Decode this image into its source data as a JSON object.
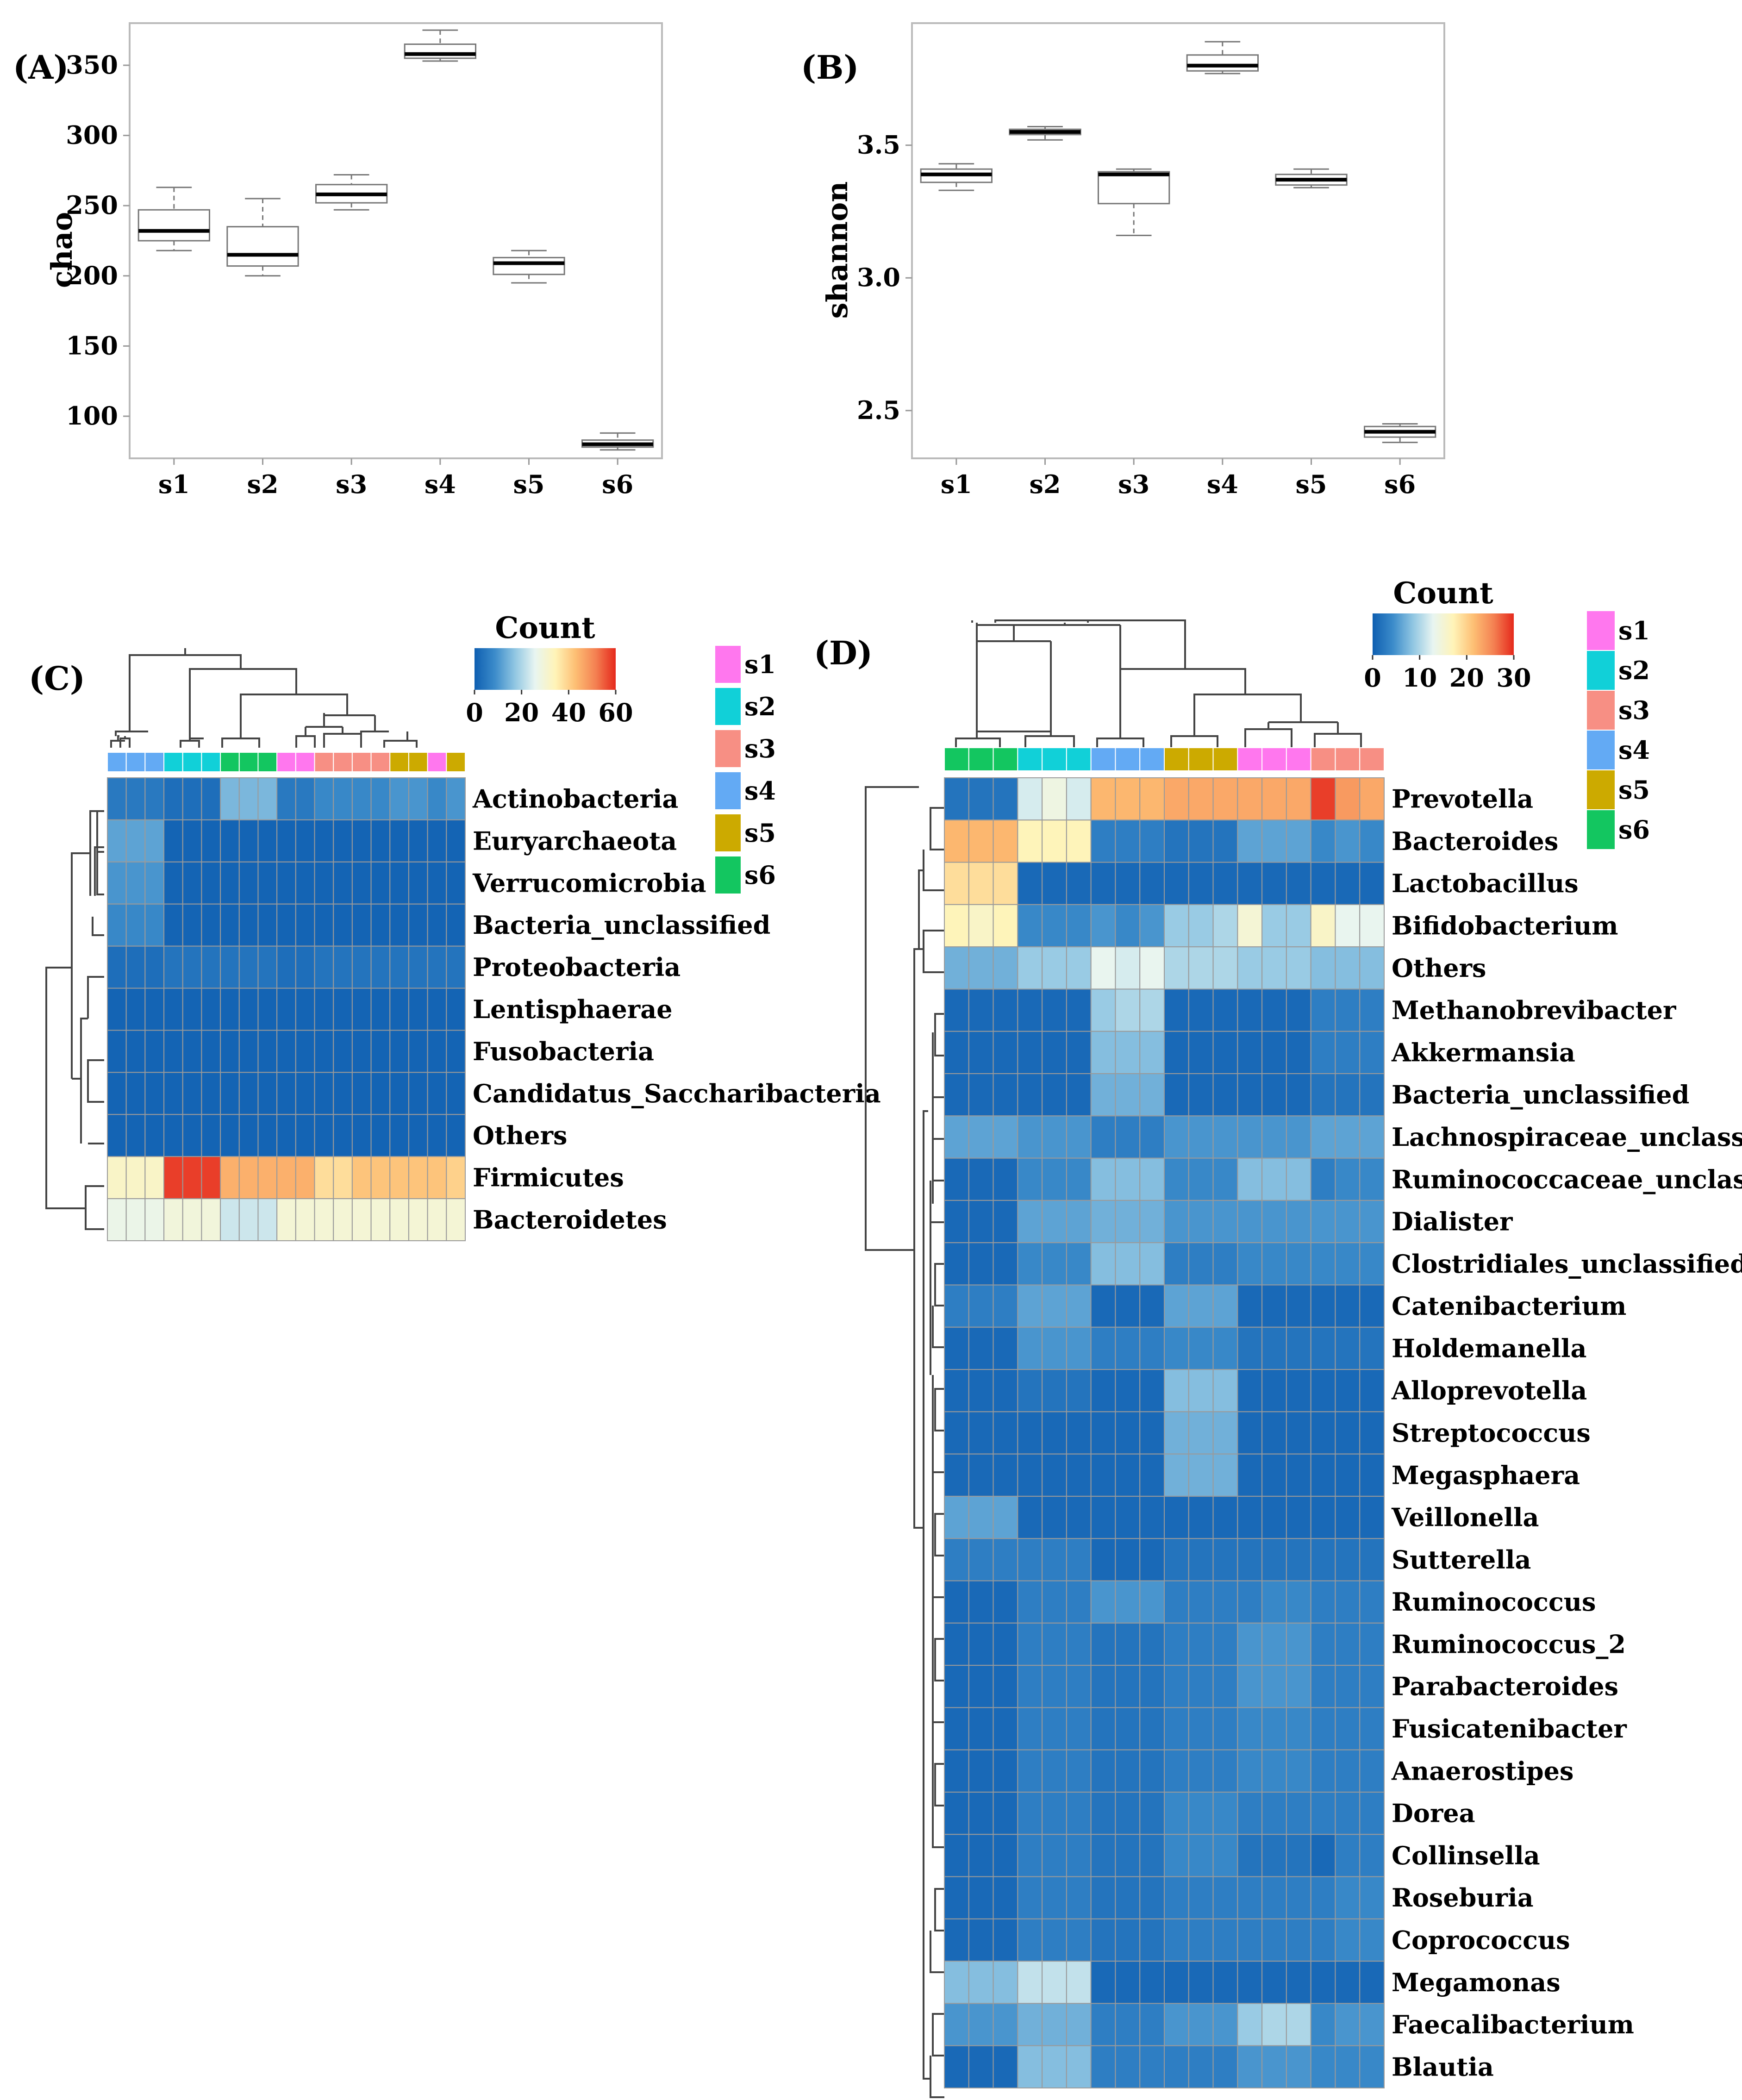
{
  "panels": {
    "A": "(A)",
    "B": "(B)",
    "C": "(C)",
    "D": "(D)"
  },
  "group_colors": {
    "s1": "#ff77ee",
    "s2": "#11d0d8",
    "s3": "#f78f84",
    "s4": "#63aaf4",
    "s5": "#ccaa00",
    "s6": "#13c660"
  },
  "heat_colors": [
    "#0f5fb1",
    "#3b8bca",
    "#90c6e2",
    "#e8f5f1",
    "#fff4b8",
    "#fdbf74",
    "#f48152",
    "#e5291c"
  ],
  "chart_data": [
    {
      "id": "A",
      "type": "box",
      "title": "",
      "xlabel": "",
      "ylabel": "chao",
      "categories": [
        "s1",
        "s2",
        "s3",
        "s4",
        "s5",
        "s6"
      ],
      "yticks": [
        100,
        150,
        200,
        250,
        300,
        350
      ],
      "ylim": [
        70,
        380
      ],
      "boxes": [
        {
          "min": 218,
          "q1": 225,
          "median": 232,
          "q3": 247,
          "max": 263
        },
        {
          "min": 200,
          "q1": 207,
          "median": 215,
          "q3": 235,
          "max": 255
        },
        {
          "min": 247,
          "q1": 252,
          "median": 258,
          "q3": 265,
          "max": 272
        },
        {
          "min": 353,
          "q1": 355,
          "median": 358,
          "q3": 365,
          "max": 375
        },
        {
          "min": 195,
          "q1": 201,
          "median": 209,
          "q3": 213,
          "max": 218
        },
        {
          "min": 76,
          "q1": 78,
          "median": 80,
          "q3": 83,
          "max": 88
        }
      ]
    },
    {
      "id": "B",
      "type": "box",
      "title": "",
      "xlabel": "",
      "ylabel": "shannon",
      "categories": [
        "s1",
        "s2",
        "s3",
        "s4",
        "s5",
        "s6"
      ],
      "yticks": [
        2.5,
        3.0,
        3.5
      ],
      "yticklabels": [
        "2.5",
        "3.0",
        "3.5"
      ],
      "ylim": [
        2.32,
        3.96
      ],
      "boxes": [
        {
          "min": 3.33,
          "q1": 3.36,
          "median": 3.39,
          "q3": 3.41,
          "max": 3.43
        },
        {
          "min": 3.52,
          "q1": 3.54,
          "median": 3.55,
          "q3": 3.56,
          "max": 3.57
        },
        {
          "min": 3.16,
          "q1": 3.28,
          "median": 3.39,
          "q3": 3.4,
          "max": 3.41
        },
        {
          "min": 3.77,
          "q1": 3.78,
          "median": 3.8,
          "q3": 3.84,
          "max": 3.89
        },
        {
          "min": 3.34,
          "q1": 3.35,
          "median": 3.37,
          "q3": 3.39,
          "max": 3.41
        },
        {
          "min": 2.38,
          "q1": 2.4,
          "median": 2.42,
          "q3": 2.44,
          "max": 2.45
        }
      ]
    },
    {
      "id": "C",
      "type": "heatmap",
      "title": "",
      "legend_title": "Count",
      "legend_ticks": [
        "0",
        "20",
        "40",
        "60"
      ],
      "legend_max": 60,
      "legend_groups": [
        "s1",
        "s2",
        "s3",
        "s4",
        "s5",
        "s6"
      ],
      "column_groups": [
        "s4",
        "s4",
        "s4",
        "s2",
        "s2",
        "s2",
        "s6",
        "s6",
        "s6",
        "s1",
        "s1",
        "s3",
        "s3",
        "s3",
        "s3",
        "s5",
        "s5",
        "s1",
        "s5"
      ],
      "rows": [
        "Actinobacteria",
        "Euryarchaeota",
        "Verrucomicrobia",
        "Bacteria_unclassified",
        "Proteobacteria",
        "Lentisphaerae",
        "Fusobacteria",
        "Candidatus_Saccharibacteria",
        "Others",
        "Firmicutes",
        "Bacteroidetes"
      ],
      "values": [
        [
          5,
          5,
          5,
          3,
          3,
          3,
          15,
          15,
          15,
          5,
          5,
          8,
          8,
          8,
          8,
          10,
          10,
          8,
          10
        ],
        [
          12,
          12,
          12,
          1,
          1,
          1,
          1,
          1,
          1,
          1,
          1,
          1,
          1,
          1,
          1,
          1,
          1,
          1,
          1
        ],
        [
          10,
          10,
          10,
          1,
          1,
          1,
          1,
          1,
          1,
          1,
          1,
          1,
          1,
          1,
          1,
          1,
          1,
          1,
          1
        ],
        [
          8,
          8,
          8,
          1,
          1,
          1,
          1,
          1,
          1,
          1,
          1,
          1,
          1,
          1,
          1,
          1,
          1,
          1,
          1
        ],
        [
          3,
          3,
          3,
          4,
          4,
          4,
          4,
          4,
          4,
          3,
          3,
          4,
          4,
          4,
          4,
          4,
          4,
          4,
          4
        ],
        [
          1,
          1,
          1,
          1,
          1,
          1,
          1,
          1,
          1,
          1,
          1,
          1,
          1,
          1,
          1,
          1,
          1,
          1,
          1
        ],
        [
          1,
          1,
          1,
          1,
          1,
          1,
          1,
          1,
          1,
          1,
          1,
          1,
          1,
          1,
          1,
          1,
          1,
          1,
          1
        ],
        [
          1,
          1,
          1,
          1,
          1,
          1,
          1,
          1,
          1,
          1,
          1,
          1,
          1,
          1,
          1,
          1,
          1,
          1,
          1
        ],
        [
          1,
          1,
          1,
          1,
          1,
          1,
          1,
          1,
          1,
          1,
          1,
          1,
          1,
          1,
          1,
          1,
          1,
          1,
          1
        ],
        [
          32,
          32,
          32,
          58,
          58,
          58,
          45,
          45,
          45,
          45,
          45,
          38,
          38,
          42,
          42,
          42,
          42,
          42,
          40
        ],
        [
          27,
          27,
          27,
          29,
          29,
          29,
          23,
          23,
          23,
          30,
          30,
          30,
          30,
          30,
          30,
          30,
          30,
          30,
          30
        ]
      ]
    },
    {
      "id": "D",
      "type": "heatmap",
      "title": "",
      "legend_title": "Count",
      "legend_ticks": [
        "0",
        "10",
        "20",
        "30"
      ],
      "legend_max": 30,
      "legend_groups": [
        "s1",
        "s2",
        "s3",
        "s4",
        "s5",
        "s6"
      ],
      "column_groups": [
        "s6",
        "s6",
        "s6",
        "s2",
        "s2",
        "s2",
        "s4",
        "s4",
        "s4",
        "s5",
        "s5",
        "s5",
        "s1",
        "s1",
        "s1",
        "s3",
        "s3",
        "s3"
      ],
      "rows": [
        "Prevotella",
        "Bacteroides",
        "Lactobacillus",
        "Bifidobacterium",
        "Others",
        "Methanobrevibacter",
        "Akkermansia",
        "Bacteria_unclassified",
        "Lachnospiraceae_unclassified",
        "Ruminococcaceae_unclassified",
        "Dialister",
        "Clostridiales_unclassified",
        "Catenibacterium",
        "Holdemanella",
        "Alloprevotella",
        "Streptococcus",
        "Megasphaera",
        "Veillonella",
        "Sutterella",
        "Ruminococcus",
        "Ruminococcus_2",
        "Parabacteroides",
        "Fusicatenibacter",
        "Anaerostipes",
        "Dorea",
        "Collinsella",
        "Roseburia",
        "Coprococcus",
        "Megamonas",
        "Faecalibacterium",
        "Blautia"
      ],
      "values": [
        [
          2,
          2,
          2,
          12,
          14,
          12,
          22,
          22,
          22,
          23,
          23,
          23,
          23,
          23,
          23,
          29,
          24,
          23
        ],
        [
          22,
          22,
          22,
          17,
          17,
          17,
          3,
          3,
          3,
          2,
          2,
          2,
          6,
          6,
          6,
          4,
          5,
          4
        ],
        [
          19,
          19,
          19,
          1,
          1,
          1,
          1,
          1,
          1,
          1,
          1,
          1,
          1,
          1,
          1,
          1,
          1,
          1
        ],
        [
          17,
          16,
          17,
          4,
          4,
          4,
          5,
          4,
          5,
          9,
          9,
          10,
          15,
          9,
          9,
          16,
          13,
          13
        ],
        [
          7,
          7,
          7,
          9,
          9,
          9,
          13,
          12,
          13,
          10,
          10,
          10,
          9,
          9,
          9,
          8,
          8,
          8
        ],
        [
          1,
          1,
          1,
          1,
          1,
          1,
          9,
          10,
          10,
          1,
          1,
          1,
          1,
          1,
          1,
          3,
          3,
          3
        ],
        [
          1,
          1,
          1,
          1,
          1,
          1,
          8,
          8,
          8,
          1,
          1,
          1,
          1,
          1,
          1,
          3,
          3,
          3
        ],
        [
          1,
          1,
          1,
          1,
          1,
          1,
          7,
          7,
          7,
          1,
          1,
          1,
          1,
          1,
          1,
          2,
          2,
          2
        ],
        [
          6,
          6,
          6,
          5,
          5,
          5,
          3,
          3,
          3,
          5,
          5,
          5,
          5,
          5,
          5,
          6,
          6,
          6
        ],
        [
          1,
          1,
          1,
          4,
          4,
          4,
          8,
          8,
          8,
          4,
          4,
          4,
          8,
          8,
          8,
          3,
          4,
          4
        ],
        [
          1,
          1,
          1,
          6,
          6,
          6,
          7,
          7,
          7,
          5,
          5,
          5,
          5,
          5,
          5,
          5,
          5,
          5
        ],
        [
          1,
          1,
          1,
          4,
          4,
          4,
          8,
          8,
          8,
          3,
          3,
          3,
          4,
          4,
          4,
          4,
          4,
          4
        ],
        [
          3,
          3,
          3,
          6,
          6,
          6,
          1,
          1,
          1,
          6,
          6,
          6,
          1,
          1,
          1,
          1,
          1,
          1
        ],
        [
          1,
          1,
          1,
          5,
          5,
          5,
          3,
          3,
          3,
          4,
          4,
          4,
          2,
          2,
          2,
          2,
          2,
          2
        ],
        [
          1,
          1,
          1,
          2,
          2,
          2,
          1,
          1,
          1,
          8,
          8,
          8,
          1,
          1,
          1,
          1,
          1,
          1
        ],
        [
          1,
          1,
          1,
          1,
          1,
          1,
          1,
          1,
          1,
          7,
          7,
          7,
          1,
          1,
          1,
          1,
          1,
          1
        ],
        [
          1,
          1,
          1,
          1,
          1,
          1,
          1,
          1,
          1,
          7,
          7,
          7,
          1,
          1,
          1,
          1,
          1,
          1
        ],
        [
          6,
          6,
          6,
          1,
          1,
          1,
          1,
          1,
          1,
          1,
          1,
          1,
          1,
          1,
          1,
          1,
          1,
          1
        ],
        [
          3,
          3,
          3,
          3,
          3,
          3,
          1,
          1,
          1,
          2,
          2,
          2,
          2,
          2,
          2,
          2,
          2,
          2
        ],
        [
          1,
          1,
          1,
          3,
          3,
          3,
          5,
          5,
          5,
          3,
          3,
          3,
          3,
          4,
          4,
          3,
          3,
          3
        ],
        [
          1,
          1,
          1,
          3,
          3,
          3,
          2,
          2,
          2,
          3,
          3,
          3,
          5,
          5,
          5,
          3,
          3,
          3
        ],
        [
          1,
          1,
          1,
          3,
          3,
          3,
          2,
          2,
          2,
          3,
          3,
          3,
          5,
          5,
          5,
          3,
          3,
          3
        ],
        [
          1,
          1,
          1,
          3,
          3,
          3,
          2,
          2,
          2,
          3,
          3,
          3,
          4,
          4,
          4,
          3,
          3,
          3
        ],
        [
          1,
          1,
          1,
          3,
          3,
          3,
          2,
          2,
          2,
          3,
          3,
          3,
          4,
          4,
          4,
          3,
          3,
          3
        ],
        [
          1,
          1,
          1,
          3,
          3,
          3,
          2,
          2,
          2,
          4,
          4,
          4,
          3,
          3,
          3,
          3,
          3,
          3
        ],
        [
          1,
          1,
          1,
          3,
          3,
          3,
          2,
          2,
          2,
          4,
          4,
          4,
          2,
          2,
          2,
          1,
          3,
          3
        ],
        [
          1,
          1,
          1,
          3,
          3,
          3,
          2,
          2,
          2,
          3,
          3,
          3,
          3,
          3,
          3,
          3,
          4,
          4
        ],
        [
          1,
          1,
          1,
          3,
          3,
          3,
          2,
          2,
          2,
          3,
          3,
          3,
          3,
          3,
          3,
          3,
          4,
          4
        ],
        [
          8,
          8,
          8,
          11,
          11,
          11,
          1,
          1,
          1,
          1,
          1,
          1,
          1,
          1,
          1,
          1,
          1,
          1
        ],
        [
          5,
          5,
          5,
          7,
          7,
          7,
          3,
          3,
          3,
          5,
          5,
          5,
          9,
          10,
          10,
          4,
          5,
          5
        ],
        [
          1,
          1,
          1,
          8,
          8,
          8,
          3,
          3,
          3,
          3,
          3,
          3,
          5,
          5,
          5,
          4,
          4,
          4
        ]
      ]
    }
  ]
}
